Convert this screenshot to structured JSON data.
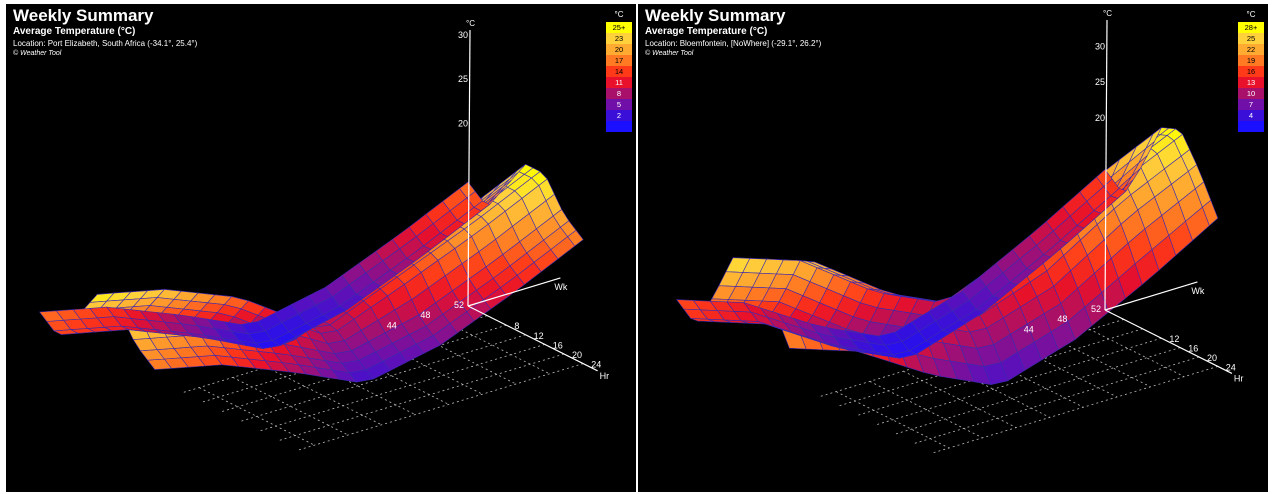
{
  "chart_data": [
    {
      "type": "surface3d",
      "title": "Weekly Summary",
      "subtitle": "Average Temperature (°C)",
      "location": "Location: Port Elizabeth, South Africa (-34.1°, 25.4°)",
      "credit": "© Weather Tool",
      "x_axis": {
        "label": "Hr",
        "ticks": [
          "8",
          "12",
          "16",
          "20",
          "24"
        ],
        "range": [
          0,
          24
        ]
      },
      "y_axis": {
        "label": "Wk",
        "ticks": [
          "44",
          "48",
          "52"
        ],
        "range": [
          1,
          52
        ]
      },
      "z_axis": {
        "label": "°C",
        "ticks": [
          "20",
          "25",
          "30"
        ]
      },
      "legend": {
        "unit": "°C",
        "labels": [
          "25+",
          "23",
          "20",
          "17",
          "14",
          "11",
          "8",
          "5",
          "2",
          ""
        ],
        "colors": [
          "#ffff00",
          "#ffd23c",
          "#ffaa30",
          "#ff7a22",
          "#ff3a18",
          "#e8102a",
          "#a8106a",
          "#7010a8",
          "#3a10d8",
          "#1a10ff"
        ]
      },
      "surface": {
        "hours": [
          0,
          4,
          8,
          12,
          16,
          20,
          24
        ],
        "weeks": [
          1,
          9,
          18,
          26,
          35,
          44,
          52
        ],
        "values": [
          [
            20,
            19,
            21,
            23,
            23,
            21,
            20
          ],
          [
            19,
            18,
            20,
            22,
            22,
            20,
            19
          ],
          [
            17,
            16,
            18,
            20,
            20,
            18,
            17
          ],
          [
            15,
            14,
            15,
            17,
            17,
            16,
            15
          ],
          [
            16,
            15,
            17,
            19,
            19,
            17,
            16
          ],
          [
            18,
            17,
            19,
            21,
            21,
            19,
            18
          ],
          [
            20,
            19,
            21,
            23,
            23,
            21,
            20
          ]
        ]
      },
      "grid": true
    },
    {
      "type": "surface3d",
      "title": "Weekly Summary",
      "subtitle": "Average Temperature (°C)",
      "location": "Location: Bloemfontein, [NoWhere] (-29.1°, 26.2°)",
      "credit": "© Weather Tool",
      "x_axis": {
        "label": "Hr",
        "ticks": [
          "12",
          "16",
          "20",
          "24"
        ],
        "range": [
          0,
          24
        ]
      },
      "y_axis": {
        "label": "Wk",
        "ticks": [
          "44",
          "48",
          "52"
        ],
        "range": [
          1,
          52
        ]
      },
      "z_axis": {
        "label": "°C",
        "ticks": [
          "20",
          "25",
          "30"
        ]
      },
      "legend": {
        "unit": "°C",
        "labels": [
          "28+",
          "25",
          "22",
          "19",
          "16",
          "13",
          "10",
          "7",
          "4",
          ""
        ],
        "colors": [
          "#ffff00",
          "#ffd23c",
          "#ffaa30",
          "#ff7a22",
          "#ff3a18",
          "#e8102a",
          "#a8106a",
          "#7010a8",
          "#3a10d8",
          "#1a10ff"
        ]
      },
      "surface": {
        "hours": [
          0,
          4,
          8,
          12,
          16,
          20,
          24
        ],
        "weeks": [
          1,
          9,
          18,
          26,
          35,
          44,
          52
        ],
        "values": [
          [
            18,
            16,
            21,
            27,
            28,
            24,
            19
          ],
          [
            15,
            13,
            18,
            24,
            25,
            21,
            16
          ],
          [
            9,
            7,
            11,
            17,
            18,
            15,
            10
          ],
          [
            5,
            3,
            7,
            13,
            14,
            11,
            6
          ],
          [
            8,
            6,
            11,
            17,
            18,
            14,
            9
          ],
          [
            13,
            11,
            16,
            23,
            24,
            20,
            14
          ],
          [
            18,
            16,
            21,
            27,
            28,
            24,
            19
          ]
        ]
      },
      "grid": true
    }
  ]
}
